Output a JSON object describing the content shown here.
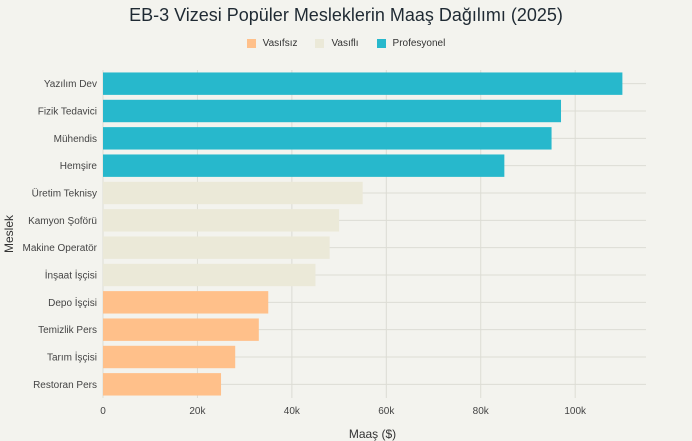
{
  "chart_data": {
    "type": "bar",
    "orientation": "horizontal",
    "title": "EB-3 Vizesi Popüler Mesleklerin Maaş Dağılımı (2025)",
    "xlabel": "Maaş ($)",
    "ylabel": "Meslek",
    "xlim": [
      0,
      115000
    ],
    "xticks": [
      0,
      20000,
      40000,
      60000,
      80000,
      100000
    ],
    "xtick_labels": [
      "0",
      "20k",
      "40k",
      "60k",
      "80k",
      "100k"
    ],
    "grid": true,
    "legend_position": "top-center",
    "legend": [
      {
        "name": "Vasıfsız",
        "color": "#ffc08a"
      },
      {
        "name": "Vasıflı",
        "color": "#ebe9d8"
      },
      {
        "name": "Profesyonel",
        "color": "#27b8cc"
      }
    ],
    "bars": [
      {
        "label": "Yazılım Dev",
        "value": 110000,
        "group": 2
      },
      {
        "label": "Fizik Tedavici",
        "value": 97000,
        "group": 2
      },
      {
        "label": "Mühendis",
        "value": 95000,
        "group": 2
      },
      {
        "label": "Hemşire",
        "value": 85000,
        "group": 2
      },
      {
        "label": "Üretim Teknisy",
        "value": 55000,
        "group": 1
      },
      {
        "label": "Kamyon Şoförü",
        "value": 50000,
        "group": 1
      },
      {
        "label": "Makine Operatör",
        "value": 48000,
        "group": 1
      },
      {
        "label": "İnşaat İşçisi",
        "value": 45000,
        "group": 1
      },
      {
        "label": "Depo İşçisi",
        "value": 35000,
        "group": 0
      },
      {
        "label": "Temizlik Pers",
        "value": 33000,
        "group": 0
      },
      {
        "label": "Tarım İşçisi",
        "value": 28000,
        "group": 0
      },
      {
        "label": "Restoran Pers",
        "value": 25000,
        "group": 0
      }
    ]
  }
}
